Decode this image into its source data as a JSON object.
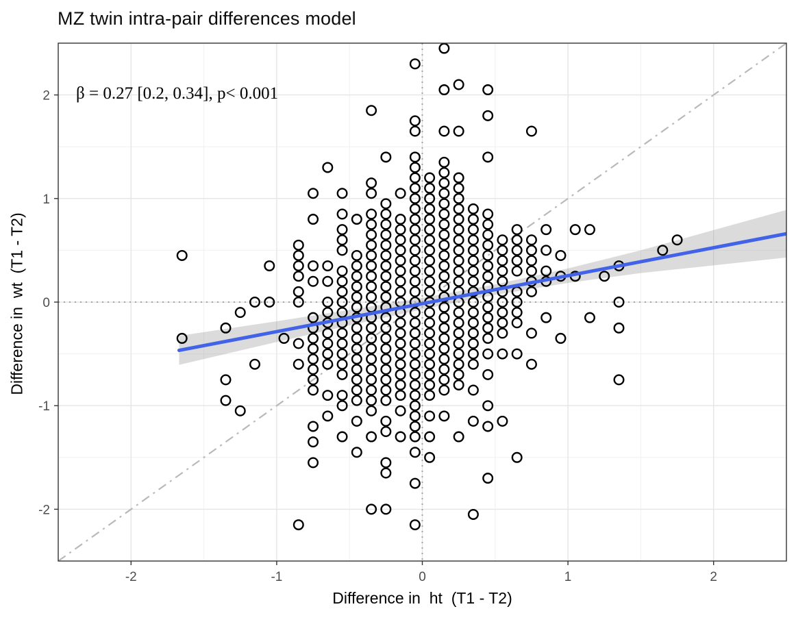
{
  "page": {
    "background": "#ffffff"
  },
  "chart_data": {
    "type": "scatter",
    "title": "MZ twin intra-pair differences model",
    "annotation": "β = 0.27 [0.2, 0.34], p< 0.001",
    "xlabel": "Difference in  ht  (T1 - T2)",
    "ylabel": "Difference in  wt  (T1 - T2)",
    "xlim": [
      -2.5,
      2.5
    ],
    "ylim": [
      -2.5,
      2.5
    ],
    "x_ticks": [
      -2,
      -1,
      0,
      1,
      2
    ],
    "y_ticks": [
      -2,
      -1,
      0,
      1,
      2
    ],
    "minor_gridlines": [
      -2.0,
      -1.5,
      -1.0,
      -0.5,
      0.0,
      0.5,
      1.0,
      1.5,
      2.0
    ],
    "grid": true,
    "legend": "none",
    "regression": {
      "beta": 0.27,
      "ci_low": 0.2,
      "ci_high": 0.34,
      "p_value": "< 0.001",
      "slope": 0.27,
      "intercept": -0.015,
      "x_start": -1.67,
      "x_end": 2.5
    },
    "ribbon_halfwidth": [
      [
        -1.67,
        0.14
      ],
      [
        -1.0,
        0.1
      ],
      [
        -0.5,
        0.075
      ],
      [
        0.0,
        0.055
      ],
      [
        0.5,
        0.05
      ],
      [
        1.0,
        0.07
      ],
      [
        1.5,
        0.11
      ],
      [
        2.0,
        0.17
      ],
      [
        2.5,
        0.23
      ]
    ],
    "identity_line": {
      "slope": 1,
      "intercept": 0,
      "style": "dash-dot"
    },
    "zero_lines": {
      "x": 0,
      "y": 0,
      "style": "dotted"
    },
    "point_style": {
      "shape": "open-circle",
      "radius_px": 6.8,
      "stroke_px": 2.4
    },
    "colors": {
      "regression_line": "#4263e8",
      "ribbon": "#999999",
      "identity_line": "#b9b9b9",
      "zero_line": "#a3a3a3",
      "grid_major": "#e5e5e5",
      "grid_minor": "#f0f0f0",
      "panel_border": "#333333",
      "point_stroke": "#000000",
      "tick_label": "#4d4d4d",
      "title": "#0d0d0d"
    },
    "columns": [
      {
        "x": -1.65,
        "ys": [
          0.45,
          -0.35
        ]
      },
      {
        "x": -1.35,
        "ys": [
          -0.25,
          -0.75,
          -0.95
        ]
      },
      {
        "x": -1.25,
        "ys": [
          -0.1,
          -1.05
        ]
      },
      {
        "x": -1.15,
        "ys": [
          0.0,
          -0.6
        ]
      },
      {
        "x": -1.05,
        "ys": [
          0.35,
          0.0
        ]
      },
      {
        "x": -0.95,
        "ys": [
          -0.35
        ]
      },
      {
        "x": -0.85,
        "ys": [
          0.55,
          0.45,
          0.35,
          0.25,
          0.1,
          0.0,
          -0.4,
          -0.6,
          -2.15
        ]
      },
      {
        "x": -0.75,
        "ys": [
          1.05,
          0.8,
          0.35,
          0.2,
          -0.15,
          -0.25,
          -0.35,
          -0.45,
          -0.55,
          -0.65,
          -0.75,
          -0.85,
          -1.2,
          -1.35,
          -1.55
        ]
      },
      {
        "x": -0.65,
        "ys": [
          1.3,
          0.35,
          0.2,
          0.0,
          -0.1,
          -0.2,
          -0.3,
          -0.4,
          -0.5,
          -0.6,
          -0.9,
          -1.1
        ]
      },
      {
        "x": -0.55,
        "ys": [
          1.05,
          0.85,
          0.7,
          0.6,
          0.5,
          0.3,
          0.2,
          0.1,
          0.0,
          -0.1,
          -0.2,
          -0.3,
          -0.4,
          -0.5,
          -0.6,
          -0.7,
          -0.9,
          -1.0,
          -1.3
        ]
      },
      {
        "x": -0.45,
        "ys": [
          0.8,
          0.45,
          0.35,
          0.25,
          0.15,
          0.05,
          -0.05,
          -0.15,
          -0.25,
          -0.35,
          -0.45,
          -0.55,
          -0.65,
          -0.75,
          -0.85,
          -0.95,
          -1.15,
          -1.45
        ]
      },
      {
        "x": -0.35,
        "ys": [
          1.85,
          1.15,
          1.05,
          0.85,
          0.75,
          0.65,
          0.55,
          0.45,
          0.35,
          0.25,
          0.15,
          0.05,
          -0.05,
          -0.15,
          -0.25,
          -0.35,
          -0.45,
          -0.55,
          -0.65,
          -0.75,
          -0.85,
          -0.95,
          -1.05,
          -1.3,
          -2.0
        ]
      },
      {
        "x": -0.25,
        "ys": [
          1.4,
          0.95,
          0.85,
          0.75,
          0.65,
          0.55,
          0.45,
          0.35,
          0.25,
          0.15,
          0.05,
          -0.05,
          -0.15,
          -0.25,
          -0.35,
          -0.45,
          -0.55,
          -0.65,
          -0.75,
          -0.85,
          -0.95,
          -1.15,
          -1.25,
          -1.55,
          -1.65,
          -2.0
        ]
      },
      {
        "x": -0.15,
        "ys": [
          1.05,
          0.8,
          0.7,
          0.6,
          0.5,
          0.4,
          0.3,
          0.2,
          0.1,
          0.0,
          -0.1,
          -0.2,
          -0.3,
          -0.4,
          -0.5,
          -0.6,
          -0.7,
          -0.8,
          -0.9,
          -1.05,
          -1.3
        ]
      },
      {
        "x": -0.05,
        "ys": [
          2.3,
          1.75,
          1.65,
          1.4,
          1.3,
          1.2,
          1.1,
          1.0,
          0.9,
          0.8,
          0.7,
          0.6,
          0.5,
          0.4,
          0.3,
          0.2,
          0.1,
          0.0,
          -0.1,
          -0.2,
          -0.3,
          -0.4,
          -0.5,
          -0.6,
          -0.7,
          -0.8,
          -0.9,
          -1.0,
          -1.1,
          -1.2,
          -1.3,
          -1.45,
          -1.75,
          -2.15
        ]
      },
      {
        "x": 0.05,
        "ys": [
          1.2,
          1.1,
          1.0,
          0.9,
          0.8,
          0.7,
          0.6,
          0.5,
          0.4,
          0.3,
          0.2,
          0.1,
          0.0,
          -0.1,
          -0.2,
          -0.3,
          -0.4,
          -0.5,
          -0.6,
          -0.7,
          -0.8,
          -0.9,
          -1.1,
          -1.3,
          -1.5
        ]
      },
      {
        "x": 0.15,
        "ys": [
          2.45,
          2.05,
          1.65,
          1.35,
          1.25,
          1.15,
          1.05,
          0.95,
          0.85,
          0.75,
          0.65,
          0.55,
          0.45,
          0.35,
          0.25,
          0.15,
          0.05,
          -0.05,
          -0.15,
          -0.25,
          -0.35,
          -0.45,
          -0.55,
          -0.65,
          -0.75,
          -0.85,
          -1.1
        ]
      },
      {
        "x": 0.25,
        "ys": [
          2.1,
          1.65,
          1.2,
          1.1,
          1.0,
          0.9,
          0.8,
          0.7,
          0.6,
          0.5,
          0.4,
          0.3,
          0.2,
          0.1,
          0.0,
          -0.1,
          -0.2,
          -0.3,
          -0.4,
          -0.5,
          -0.6,
          -0.7,
          -0.8,
          -1.3
        ]
      },
      {
        "x": 0.35,
        "ys": [
          0.9,
          0.8,
          0.7,
          0.6,
          0.5,
          0.4,
          0.3,
          0.2,
          0.1,
          0.0,
          -0.1,
          -0.2,
          -0.3,
          -0.4,
          -0.5,
          -0.6,
          -0.85,
          -1.15,
          -2.05
        ]
      },
      {
        "x": 0.45,
        "ys": [
          2.05,
          1.8,
          1.4,
          0.85,
          0.75,
          0.65,
          0.55,
          0.45,
          0.35,
          0.25,
          0.15,
          0.05,
          -0.05,
          -0.15,
          -0.25,
          -0.35,
          -0.5,
          -0.7,
          -1.0,
          -1.2,
          -1.7
        ]
      },
      {
        "x": 0.55,
        "ys": [
          0.6,
          0.5,
          0.4,
          0.3,
          0.2,
          0.1,
          0.0,
          -0.1,
          -0.2,
          -0.3,
          -0.5,
          -1.15
        ]
      },
      {
        "x": 0.65,
        "ys": [
          0.7,
          0.6,
          0.5,
          0.4,
          0.3,
          0.1,
          0.0,
          -0.1,
          -0.2,
          -0.5,
          -1.5
        ]
      },
      {
        "x": 0.75,
        "ys": [
          1.65,
          0.6,
          0.5,
          0.4,
          0.3,
          0.2,
          0.1,
          -0.3,
          -0.6
        ]
      },
      {
        "x": 0.85,
        "ys": [
          0.7,
          0.5,
          0.3,
          0.2,
          -0.15
        ]
      },
      {
        "x": 0.95,
        "ys": [
          0.45,
          0.25,
          -0.35
        ]
      },
      {
        "x": 1.05,
        "ys": [
          0.7,
          0.25
        ]
      },
      {
        "x": 1.15,
        "ys": [
          0.7,
          -0.15
        ]
      },
      {
        "x": 1.25,
        "ys": [
          0.25
        ]
      },
      {
        "x": 1.35,
        "ys": [
          0.35,
          0.0,
          -0.25,
          -0.75
        ]
      },
      {
        "x": 1.65,
        "ys": [
          0.5
        ]
      },
      {
        "x": 1.75,
        "ys": [
          0.6
        ]
      }
    ]
  }
}
